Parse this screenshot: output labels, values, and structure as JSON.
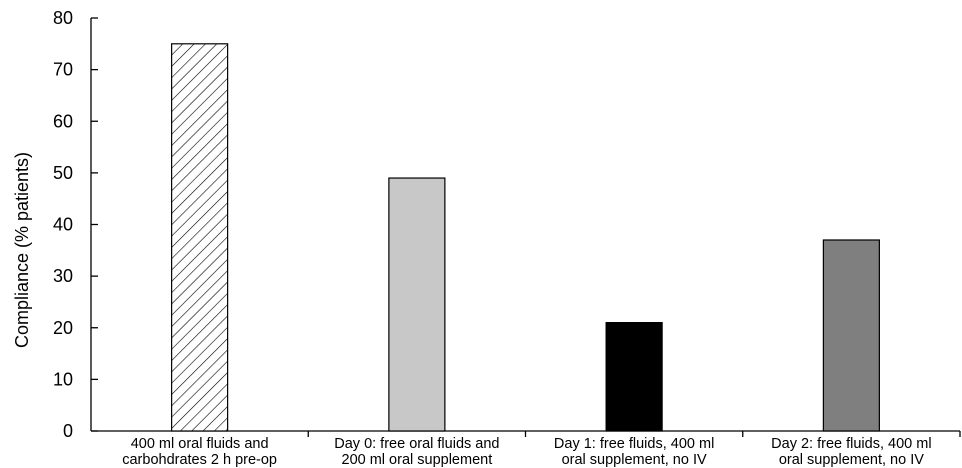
{
  "chart_data": {
    "type": "bar",
    "title": "",
    "xlabel": "",
    "ylabel": "Compliance (% patients)",
    "ylim": [
      0,
      80
    ],
    "yticks": [
      "0",
      "10",
      "20",
      "30",
      "40",
      "50",
      "60",
      "70",
      "80"
    ],
    "grid": false,
    "legend": "none",
    "categories": [
      [
        "400 ml oral fluids and",
        "carbohdrates 2 h pre-op"
      ],
      [
        "Day 0: free oral fluids and",
        "200 ml oral supplement"
      ],
      [
        "Day 1: free fluids, 400 ml",
        "oral supplement, no IV"
      ],
      [
        "Day 2: free fluids, 400 ml",
        "oral supplement, no IV"
      ]
    ],
    "values": [
      75,
      49,
      21,
      37
    ],
    "bar_fills": [
      "hatch",
      "#c8c8c8",
      "#000000",
      "#7f7f7f"
    ]
  }
}
